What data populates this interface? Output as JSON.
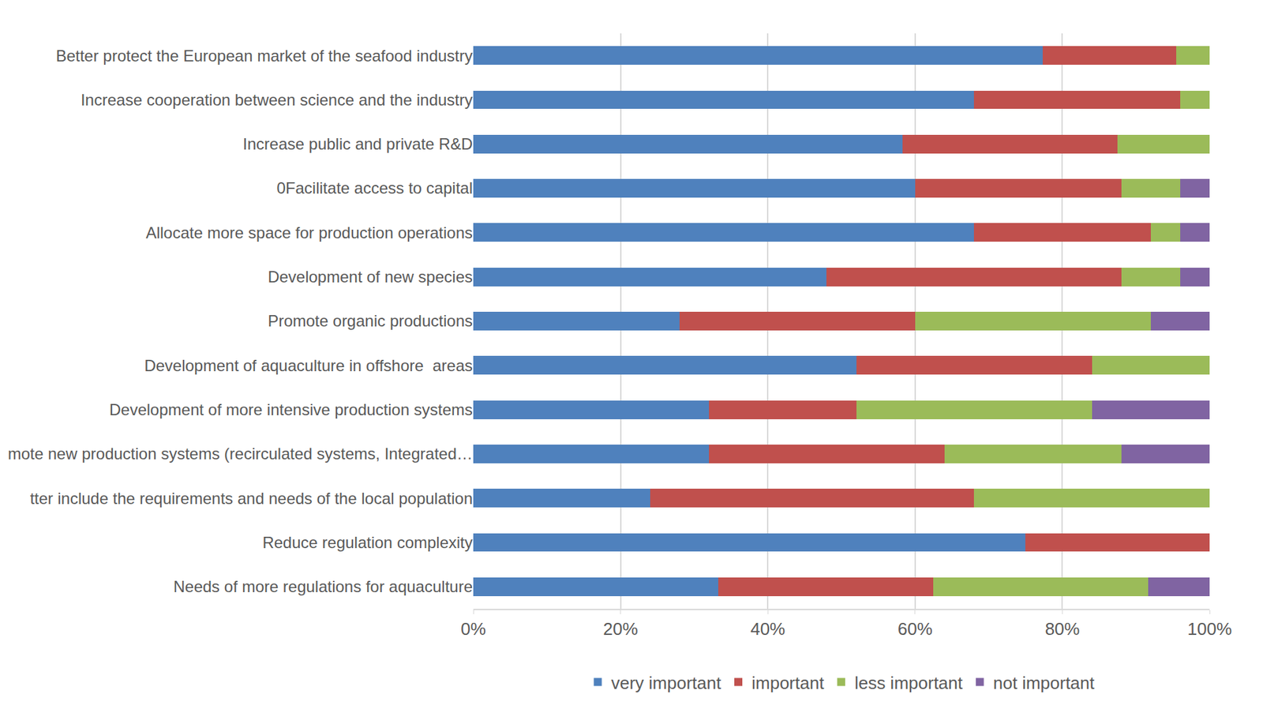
{
  "chart_data": {
    "type": "bar",
    "orientation": "horizontal",
    "stacked": true,
    "grid": true,
    "legend": "bottom",
    "categories": [
      "Better protect the European market of the seafood industry",
      "Increase cooperation between science and the industry",
      "Increase public and private R&D",
      "0Facilitate access to capital",
      "Allocate more space for production operations",
      "Development of new species",
      "Promote organic productions",
      "Development of aquaculture in offshore  areas",
      "Development of more intensive production systems",
      "mote new production systems (recirculated systems, Integrated…",
      "tter include the requirements and needs of the local population",
      "Reduce regulation complexity",
      "Needs of more regulations for aquaculture"
    ],
    "series": [
      {
        "name": "very important",
        "color": "#4F81BD",
        "values": [
          77.3,
          68,
          58.3,
          60,
          68,
          48,
          28,
          52,
          32,
          32,
          24,
          75,
          33.3
        ]
      },
      {
        "name": "important",
        "color": "#C0504D",
        "values": [
          18.2,
          28,
          29.2,
          28,
          24,
          40,
          32,
          32,
          20,
          32,
          44,
          25,
          29.2
        ]
      },
      {
        "name": "less important",
        "color": "#9BBB59",
        "values": [
          4.5,
          4,
          12.5,
          8,
          4,
          8,
          32,
          16,
          32,
          24,
          32,
          0,
          29.2
        ]
      },
      {
        "name": "not important",
        "color": "#8064A2",
        "values": [
          0,
          0,
          0,
          4,
          4,
          4,
          8,
          0,
          16,
          12,
          0,
          0,
          8.3
        ]
      }
    ],
    "xlim": [
      0,
      100
    ],
    "xticks": [
      {
        "value": 0,
        "label": "0%"
      },
      {
        "value": 20,
        "label": "20%"
      },
      {
        "value": 40,
        "label": "40%"
      },
      {
        "value": 60,
        "label": "60%"
      },
      {
        "value": 80,
        "label": "80%"
      },
      {
        "value": 100,
        "label": "100%"
      }
    ]
  }
}
